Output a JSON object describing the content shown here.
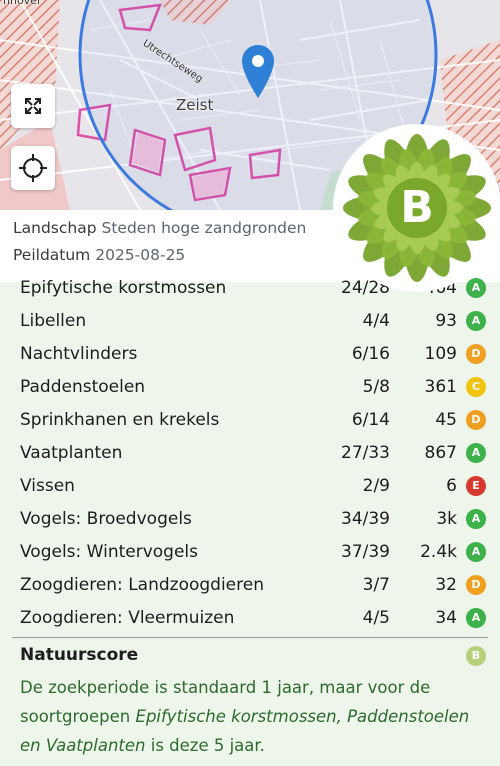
{
  "map": {
    "place_label": "Zeist",
    "street_label": "Utrechtseweg",
    "corner_label": "nnover",
    "fullscreen_icon": "expand-icon",
    "locate_icon": "crosshair-icon",
    "marker_icon": "map-pin-icon"
  },
  "info": {
    "landscape_label": "Landschap",
    "landscape_value": "Steden hoge zandgronden",
    "date_label": "Peildatum",
    "date_value": "2025-08-25"
  },
  "overall_grade": {
    "letter": "B",
    "color": "#7aa82a"
  },
  "grade_colors": {
    "A": "#3db24a",
    "B": "#b7d17a",
    "C": "#f1c40f",
    "D": "#f0a020",
    "E": "#d63a2f"
  },
  "groups": [
    {
      "name": "Epifytische korstmossen",
      "ratio": "24/28",
      "count": "464",
      "grade": "A"
    },
    {
      "name": "Libellen",
      "ratio": "4/4",
      "count": "93",
      "grade": "A"
    },
    {
      "name": "Nachtvlinders",
      "ratio": "6/16",
      "count": "109",
      "grade": "D"
    },
    {
      "name": "Paddenstoelen",
      "ratio": "5/8",
      "count": "361",
      "grade": "C"
    },
    {
      "name": "Sprinkhanen en krekels",
      "ratio": "6/14",
      "count": "45",
      "grade": "D"
    },
    {
      "name": "Vaatplanten",
      "ratio": "27/33",
      "count": "867",
      "grade": "A"
    },
    {
      "name": "Vissen",
      "ratio": "2/9",
      "count": "6",
      "grade": "E"
    },
    {
      "name": "Vogels: Broedvogels",
      "ratio": "34/39",
      "count": "3k",
      "grade": "A"
    },
    {
      "name": "Vogels: Wintervogels",
      "ratio": "37/39",
      "count": "2.4k",
      "grade": "A"
    },
    {
      "name": "Zoogdieren: Landzoogdieren",
      "ratio": "3/7",
      "count": "32",
      "grade": "D"
    },
    {
      "name": "Zoogdieren: Vleermuizen",
      "ratio": "4/5",
      "count": "34",
      "grade": "A"
    }
  ],
  "total": {
    "label": "Natuurscore",
    "grade": "B"
  },
  "note": {
    "part1": "De zoekperiode is standaard 1 jaar, maar voor de soortgroepen ",
    "emph": "Epifytische korstmossen, Paddenstoelen en Vaatplanten",
    "part2": " is deze 5 jaar."
  }
}
